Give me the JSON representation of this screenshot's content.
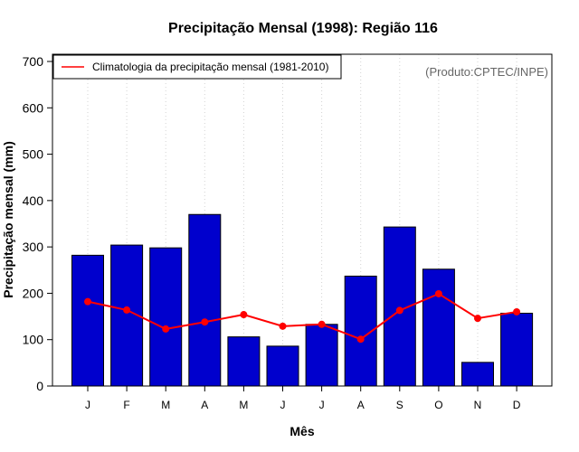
{
  "chart_data": {
    "type": "bar",
    "title": "Precipitação Mensal (1998): Região 116",
    "xlabel": "Mês",
    "ylabel": "Precipitação mensal (mm)",
    "ylim": [
      0,
      700
    ],
    "yticks": [
      0,
      100,
      200,
      300,
      400,
      500,
      600,
      700
    ],
    "categories": [
      "J",
      "F",
      "M",
      "A",
      "M",
      "J",
      "J",
      "A",
      "S",
      "O",
      "N",
      "D"
    ],
    "series": [
      {
        "name": "Precipitação mensal 1998",
        "type": "bar",
        "color": "#0000cd",
        "values": [
          282,
          304,
          298,
          370,
          106,
          86,
          133,
          237,
          343,
          252,
          51,
          157
        ]
      },
      {
        "name": "Climatologia da precipitação mensal (1981-2010)",
        "type": "line",
        "color": "#ff0000",
        "values": [
          182,
          164,
          123,
          138,
          154,
          129,
          133,
          101,
          163,
          199,
          146,
          160
        ]
      }
    ],
    "legend": {
      "position": "top-left",
      "entries": [
        "Climatologia da precipitação mensal (1981-2010)"
      ]
    },
    "annotation": "(Produto:CPTEC/INPE)",
    "grid": "vertical dotted"
  }
}
